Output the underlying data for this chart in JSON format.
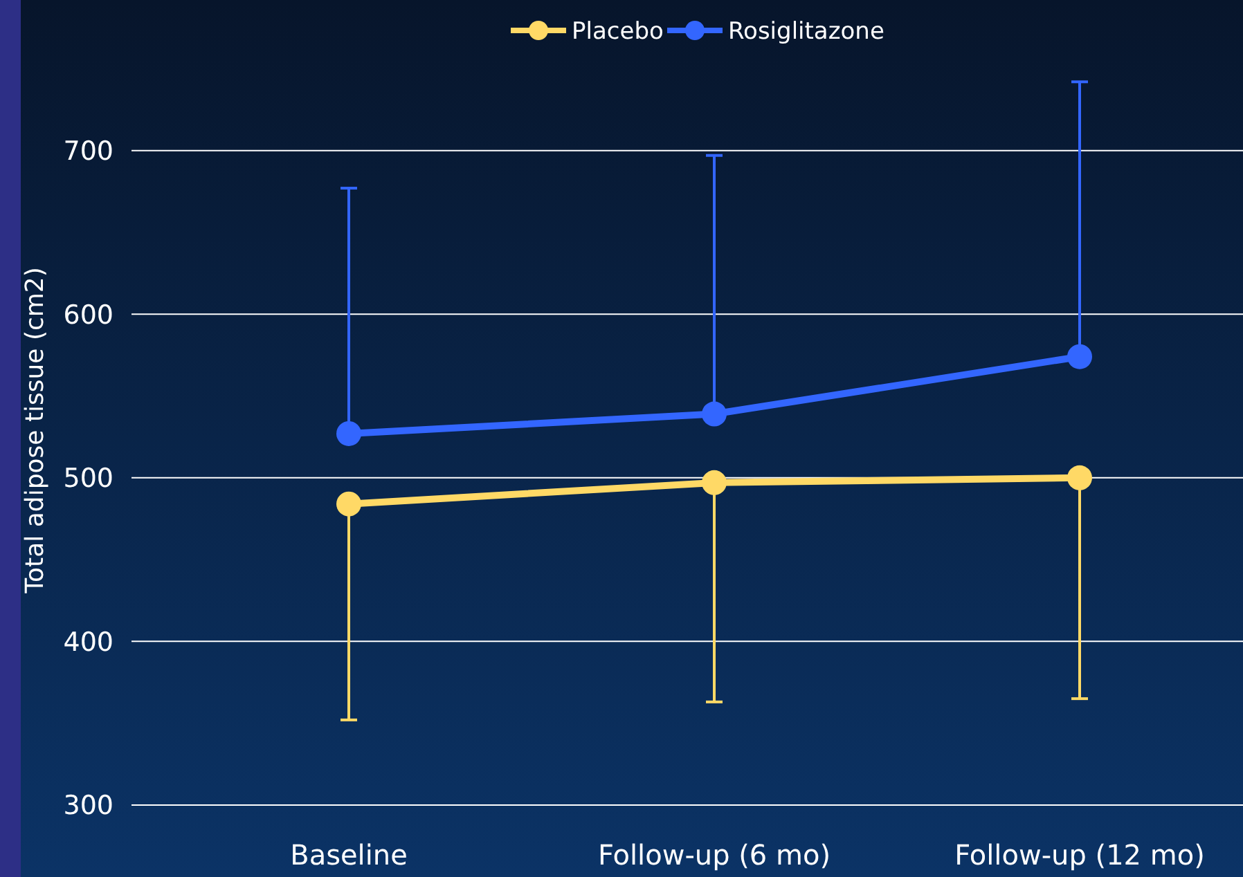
{
  "chart_data": {
    "type": "line",
    "ylabel": "Total adipose tissue (cm2)",
    "categories": [
      "Baseline",
      "Follow-up (6 mo)",
      "Follow-up (12 mo)"
    ],
    "series": [
      {
        "name": "Placebo",
        "color": "#ffd966",
        "values": [
          484,
          497,
          500
        ],
        "errors": [
          [
            352,
            484
          ],
          [
            363,
            497
          ],
          [
            365,
            500
          ]
        ]
      },
      {
        "name": "Rosiglitazone",
        "color": "#3366ff",
        "values": [
          527,
          539,
          574
        ],
        "errors": [
          [
            527,
            677
          ],
          [
            539,
            697
          ],
          [
            574,
            742
          ]
        ]
      }
    ],
    "ylim": [
      256,
      792
    ],
    "yticks": [
      300,
      400,
      500,
      600,
      700
    ],
    "grid": "y",
    "legend": "top",
    "marker": "circle",
    "line_style": "solid"
  }
}
